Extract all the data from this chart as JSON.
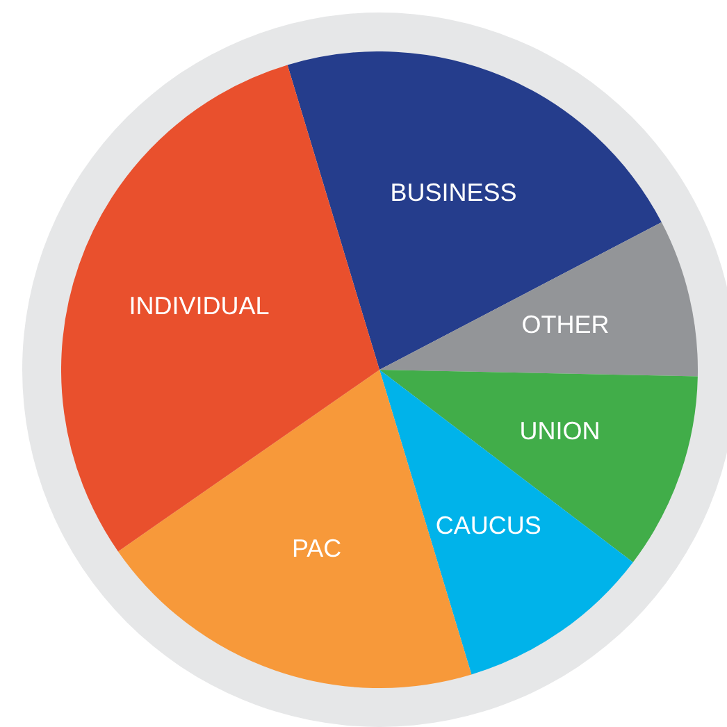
{
  "chart_data": {
    "type": "pie",
    "categories": [
      "BUSINESS",
      "OTHER",
      "UNION",
      "CAUCUS",
      "PAC",
      "INDIVIDUAL"
    ],
    "values": [
      22,
      8,
      10,
      10,
      20,
      30
    ],
    "colors": [
      "#253d8c",
      "#939598",
      "#41ad49",
      "#00b3ea",
      "#f7993a",
      "#e9502d"
    ],
    "legend": false
  }
}
